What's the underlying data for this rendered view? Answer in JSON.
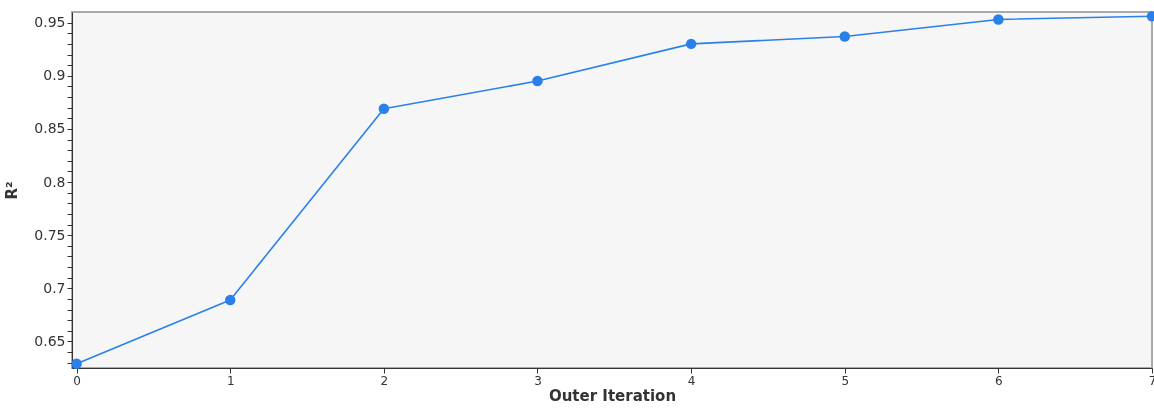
{
  "chart_data": {
    "type": "line",
    "xlabel": "Outer Iteration",
    "ylabel": "R²",
    "x": [
      0,
      1,
      2,
      3,
      4,
      5,
      6,
      7
    ],
    "series": [
      {
        "color": "#2a80ea",
        "values": [
          0.629,
          0.689,
          0.869,
          0.895,
          0.93,
          0.937,
          0.953,
          0.956
        ]
      }
    ],
    "xlim": [
      -0.03,
      7
    ],
    "xticks": [
      0,
      1,
      2,
      3,
      4,
      5,
      6,
      7
    ],
    "ylim": [
      0.625,
      0.96
    ],
    "yticks": [
      {
        "value": 0.63,
        "label": null
      },
      {
        "value": 0.64,
        "label": null
      },
      0.65,
      {
        "value": 0.66,
        "label": null
      },
      {
        "value": 0.67,
        "label": null
      },
      {
        "value": 0.68,
        "label": null
      },
      {
        "value": 0.69,
        "label": null
      },
      0.7,
      {
        "value": 0.71,
        "label": null
      },
      {
        "value": 0.72,
        "label": null
      },
      {
        "value": 0.73,
        "label": null
      },
      {
        "value": 0.74,
        "label": null
      },
      0.75,
      {
        "value": 0.76,
        "label": null
      },
      {
        "value": 0.77,
        "label": null
      },
      {
        "value": 0.78,
        "label": null
      },
      {
        "value": 0.79,
        "label": null
      },
      0.8,
      {
        "value": 0.81,
        "label": null
      },
      {
        "value": 0.82,
        "label": null
      },
      {
        "value": 0.83,
        "label": null
      },
      {
        "value": 0.84,
        "label": null
      },
      0.85,
      {
        "value": 0.86,
        "label": null
      },
      {
        "value": 0.87,
        "label": null
      },
      {
        "value": 0.88,
        "label": null
      },
      {
        "value": 0.89,
        "label": null
      },
      0.9,
      {
        "value": 0.91,
        "label": null
      },
      {
        "value": 0.92,
        "label": null
      },
      {
        "value": 0.93,
        "label": null
      },
      {
        "value": 0.94,
        "label": null
      },
      0.95
    ],
    "grid": false,
    "marker": "circle",
    "line_style": "solid"
  }
}
